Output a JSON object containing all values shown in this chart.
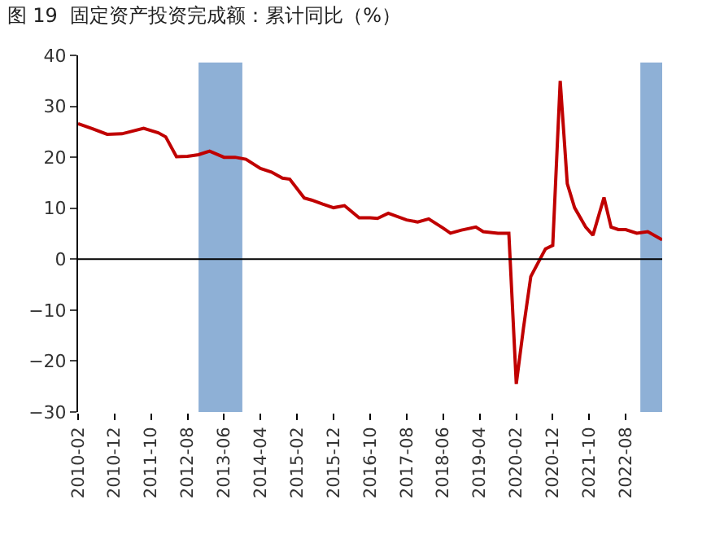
{
  "chart_data": {
    "type": "line",
    "title": "图 19  固定资产投资完成额：累计同比（%）",
    "x": [
      "2010-02",
      "2010-06",
      "2010-10",
      "2011-02",
      "2011-08",
      "2011-12",
      "2012-02",
      "2012-05",
      "2012-08",
      "2012-11",
      "2013-02",
      "2013-06",
      "2013-09",
      "2013-12",
      "2014-04",
      "2014-07",
      "2014-10",
      "2014-12",
      "2015-04",
      "2015-06",
      "2015-09",
      "2015-12",
      "2016-03",
      "2016-07",
      "2016-10",
      "2016-12",
      "2017-03",
      "2017-08",
      "2017-11",
      "2018-02",
      "2018-06",
      "2018-08",
      "2018-11",
      "2019-03",
      "2019-05",
      "2019-09",
      "2019-12",
      "2020-02",
      "2020-04",
      "2020-06",
      "2020-08",
      "2020-10",
      "2020-12",
      "2021-02",
      "2021-04",
      "2021-06",
      "2021-09",
      "2021-11",
      "2022-02",
      "2022-04",
      "2022-06",
      "2022-08",
      "2022-11",
      "2023-02",
      "2023-06"
    ],
    "series": [
      {
        "color": "#c00000",
        "values": [
          26.6,
          25.6,
          24.5,
          24.6,
          25.7,
          24.8,
          24.0,
          20.1,
          20.2,
          20.5,
          21.2,
          20.0,
          20.0,
          19.6,
          17.8,
          17.1,
          15.9,
          15.7,
          12.0,
          11.6,
          10.8,
          10.1,
          10.5,
          8.1,
          8.1,
          8.0,
          9.0,
          7.7,
          7.3,
          7.9,
          6.1,
          5.1,
          5.7,
          6.3,
          5.4,
          5.1,
          5.1,
          -24.5,
          -13.5,
          -3.4,
          -0.7,
          2.0,
          2.7,
          35.0,
          14.8,
          10.1,
          6.3,
          4.7,
          12.1,
          6.3,
          5.8,
          5.8,
          5.1,
          5.4,
          3.8
        ]
      }
    ],
    "xlim": [
      "2010-02",
      "2023-06"
    ],
    "xticks": [
      "2010-02",
      "2010-12",
      "2011-10",
      "2012-08",
      "2013-06",
      "2014-04",
      "2015-02",
      "2015-12",
      "2016-10",
      "2017-08",
      "2018-06",
      "2019-04",
      "2020-02",
      "2020-12",
      "2021-10",
      "2022-08"
    ],
    "ylim": [
      -30,
      40
    ],
    "yticks": [
      {
        "value": -30,
        "label": "−30"
      },
      {
        "value": -20,
        "label": "−20"
      },
      {
        "value": -10,
        "label": "−10"
      },
      0,
      10,
      20,
      30,
      40
    ],
    "bands": [
      {
        "axis": "x",
        "from": "2012-11",
        "to": "2013-11",
        "color": "#8eb0d6"
      },
      {
        "axis": "x",
        "from": "2022-12",
        "to": "2023-06",
        "color": "#8eb0d6"
      }
    ],
    "ref_lines": [
      {
        "axis": "y",
        "value": 0,
        "color": "#000000",
        "line_style": "solid"
      }
    ],
    "grid": false,
    "legend": false,
    "marker": "none",
    "line_style": "solid"
  }
}
